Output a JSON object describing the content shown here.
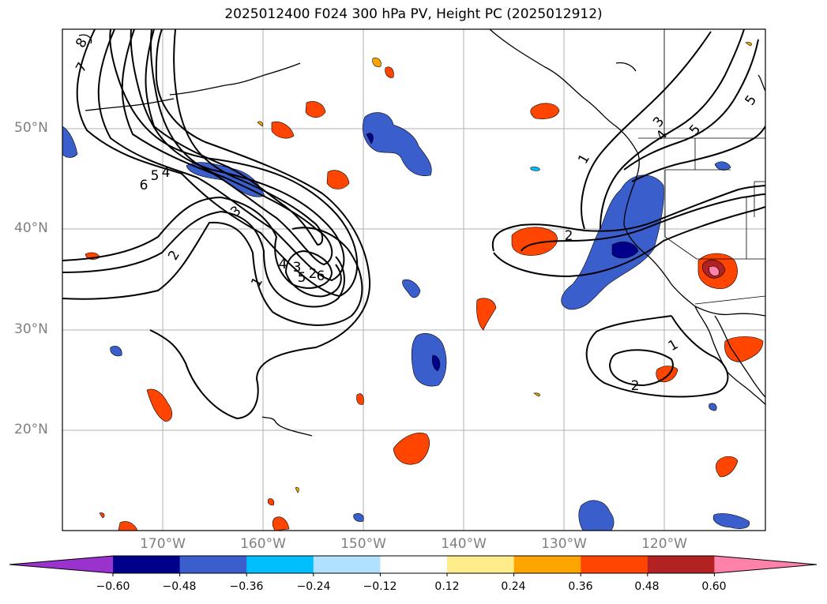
{
  "title": "2025012400 F024 300 hPa PV, Height PC (2025012912)",
  "lat_labels": [
    "50°N",
    "40°N",
    "30°N",
    "20°N"
  ],
  "lon_labels": [
    "170°W",
    "160°W",
    "150°W",
    "140°W",
    "130°W",
    "120°W"
  ],
  "contour_labels": [
    "8",
    "7",
    "6",
    "5",
    "4",
    "3",
    "2",
    "1",
    "2",
    "3",
    "4",
    "5",
    "6",
    "1",
    "2",
    "3",
    "4",
    "5",
    "5",
    "1",
    "2"
  ],
  "colorbar": {
    "ticks": [
      "−0.60",
      "−0.48",
      "−0.36",
      "−0.24",
      "−0.12",
      "0.12",
      "0.24",
      "0.36",
      "0.48",
      "0.60"
    ],
    "colors": [
      "#9a32cd",
      "#00008b",
      "#3a5fcd",
      "#00bfff",
      "#b0e2ff",
      "#ffffff",
      "#ffec8b",
      "#ffa500",
      "#ff4500",
      "#b22222",
      "#ff82ab"
    ]
  }
}
